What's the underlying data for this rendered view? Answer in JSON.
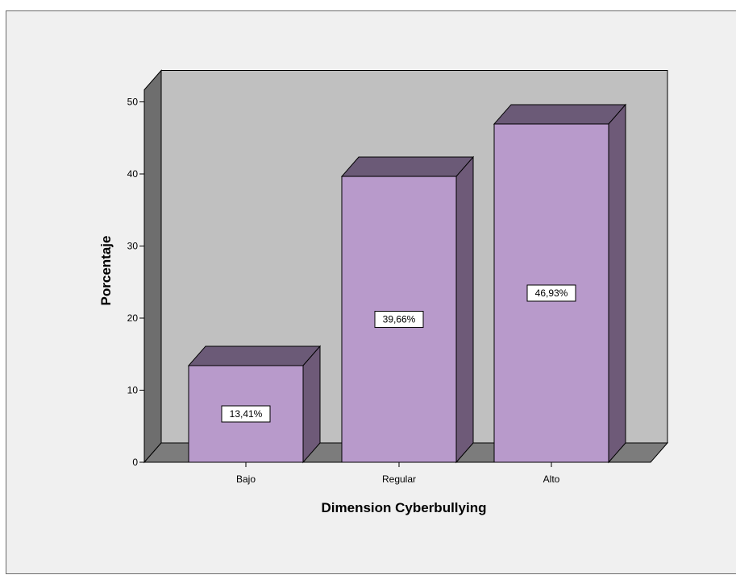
{
  "chart_data": {
    "type": "bar",
    "style": "3d",
    "categories": [
      "Bajo",
      "Regular",
      "Alto"
    ],
    "values": [
      13.41,
      39.66,
      46.93
    ],
    "data_labels": [
      "13,41%",
      "39,66%",
      "46,93%"
    ],
    "xlabel": "Dimension Cyberbullying",
    "ylabel": "Porcentaje",
    "ylim": [
      0,
      50
    ],
    "yticks": [
      0,
      10,
      20,
      30,
      40,
      50
    ],
    "grid": false,
    "legend": "none"
  },
  "colors": {
    "bar_front": "#b89acb",
    "bar_top": "#6b5a77",
    "bar_side": "#6e5a78",
    "back_wall": "#c0c0c0",
    "side_wall": "#6e6e6e",
    "floor": "#7c7c7c",
    "frame_bg": "#f0f0f0"
  }
}
